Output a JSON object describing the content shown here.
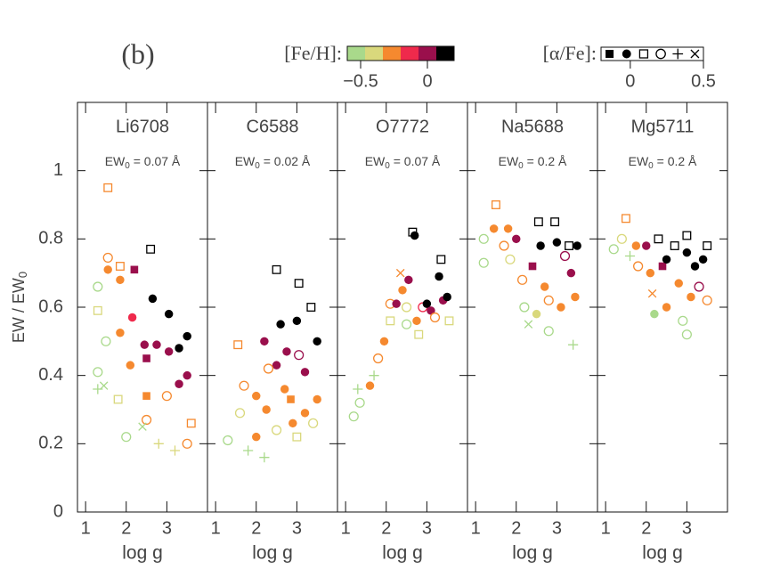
{
  "panel_label": "(b)",
  "feh_legend": {
    "label": "[Fe/H]:",
    "colors": [
      "#a9d98b",
      "#d9d87c",
      "#f5892f",
      "#ef2a4c",
      "#9a0f4c",
      "#000000"
    ],
    "lim": [
      -0.6,
      0.2
    ],
    "ticks": [
      {
        "value": -0.5,
        "label": "−0.5"
      },
      0
    ]
  },
  "alpha_legend": {
    "label": "[α/Fe]:",
    "markers": [
      "square-filled",
      "circle-filled",
      "square-open",
      "circle-open",
      "plus",
      "cross"
    ],
    "lim": [
      -0.2,
      0.5
    ],
    "ticks": [
      0,
      0.5
    ]
  },
  "chart_data": [
    {
      "type": "scatter",
      "title": "Li6708",
      "annotation": {
        "prefix": "EW",
        "sub": "0",
        "text": " = 0.07 Å"
      },
      "xlabel": "log g",
      "ylabel": "EW / EW",
      "ylabel_sub": "0",
      "xlim": [
        0.8,
        4.0
      ],
      "xticks": [
        1,
        2,
        3
      ],
      "ylim": [
        0,
        1.2
      ],
      "yticks": [
        0,
        0.2,
        0.4,
        0.6,
        0.8,
        1
      ],
      "points": [
        [
          1.55,
          0.95,
          -0.2,
          0.1
        ],
        [
          1.3,
          0.66,
          -0.6,
          0.2
        ],
        [
          1.55,
          0.745,
          -0.3,
          0.2
        ],
        [
          1.55,
          0.71,
          -0.3,
          0
        ],
        [
          1.85,
          0.72,
          -0.2,
          0.1
        ],
        [
          1.85,
          0.68,
          -0.2,
          0
        ],
        [
          2.2,
          0.71,
          0,
          -0.1
        ],
        [
          2.15,
          0.57,
          -0.15,
          0
        ],
        [
          1.85,
          0.525,
          -0.3,
          0
        ],
        [
          2.5,
          0.45,
          0,
          -0.1
        ],
        [
          2.45,
          0.49,
          0,
          0
        ],
        [
          2.6,
          0.77,
          0.1,
          0.1
        ],
        [
          2.65,
          0.625,
          0.1,
          0
        ],
        [
          3.05,
          0.58,
          0.1,
          0
        ],
        [
          2.75,
          0.49,
          0,
          0
        ],
        [
          3.05,
          0.47,
          0,
          0
        ],
        [
          3.3,
          0.48,
          0.1,
          0
        ],
        [
          3.5,
          0.515,
          0.1,
          0
        ],
        [
          3.5,
          0.4,
          0,
          0
        ],
        [
          3.3,
          0.375,
          0,
          0
        ],
        [
          2.1,
          0.43,
          -0.3,
          0
        ],
        [
          2.5,
          0.34,
          -0.2,
          -0.1
        ],
        [
          3.0,
          0.34,
          -0.3,
          0.2
        ],
        [
          2.5,
          0.27,
          -0.3,
          0.2
        ],
        [
          1.3,
          0.41,
          -0.6,
          0.2
        ],
        [
          1.3,
          0.36,
          -0.6,
          0.3
        ],
        [
          1.45,
          0.37,
          -0.6,
          0.45
        ],
        [
          1.8,
          0.33,
          -0.45,
          0.1
        ],
        [
          2.0,
          0.22,
          -0.5,
          0.2
        ],
        [
          2.4,
          0.25,
          -0.5,
          0.45
        ],
        [
          2.8,
          0.2,
          -0.4,
          0.3
        ],
        [
          3.2,
          0.18,
          -0.4,
          0.3
        ],
        [
          3.5,
          0.2,
          -0.3,
          0.2
        ],
        [
          3.6,
          0.26,
          -0.3,
          0.1
        ],
        [
          1.5,
          0.5,
          -0.5,
          0.2
        ],
        [
          1.3,
          0.59,
          -0.45,
          0.1
        ]
      ]
    },
    {
      "type": "scatter",
      "title": "C6588",
      "annotation": {
        "prefix": "EW",
        "sub": "0",
        "text": " = 0.02 Å"
      },
      "xlabel": "log g",
      "xlim": [
        0.8,
        4.0
      ],
      "xticks": [
        1,
        2,
        3
      ],
      "ylim": [
        0,
        1.2
      ],
      "yticks": [
        0,
        0.2,
        0.4,
        0.6,
        0.8,
        1
      ],
      "points": [
        [
          1.55,
          0.49,
          -0.2,
          0.1
        ],
        [
          1.3,
          0.21,
          -0.6,
          0.2
        ],
        [
          1.6,
          0.29,
          -0.4,
          0.2
        ],
        [
          1.7,
          0.37,
          -0.3,
          0.2
        ],
        [
          2.0,
          0.34,
          -0.2,
          0
        ],
        [
          2.0,
          0.22,
          -0.3,
          0
        ],
        [
          2.2,
          0.5,
          0,
          0
        ],
        [
          2.25,
          0.3,
          -0.3,
          0
        ],
        [
          2.5,
          0.71,
          0.1,
          0.1
        ],
        [
          2.6,
          0.55,
          0.1,
          0
        ],
        [
          2.5,
          0.43,
          0,
          0
        ],
        [
          2.75,
          0.47,
          0,
          0
        ],
        [
          2.85,
          0.33,
          -0.2,
          -0.1
        ],
        [
          3.0,
          0.56,
          0.1,
          0
        ],
        [
          3.05,
          0.67,
          0.1,
          0.1
        ],
        [
          3.05,
          0.46,
          0,
          0.2
        ],
        [
          3.2,
          0.41,
          0,
          0
        ],
        [
          3.35,
          0.6,
          0.1,
          0.1
        ],
        [
          3.5,
          0.5,
          0.1,
          0
        ],
        [
          3.5,
          0.33,
          -0.2,
          0
        ],
        [
          2.3,
          0.42,
          -0.2,
          0.2
        ],
        [
          2.7,
          0.36,
          -0.2,
          0
        ],
        [
          3.2,
          0.29,
          -0.3,
          0
        ],
        [
          1.8,
          0.18,
          -0.5,
          0.3
        ],
        [
          2.2,
          0.16,
          -0.5,
          0.3
        ],
        [
          2.5,
          0.24,
          -0.4,
          0.2
        ],
        [
          3.0,
          0.22,
          -0.4,
          0.1
        ],
        [
          3.4,
          0.26,
          -0.4,
          0.2
        ],
        [
          2.9,
          0.26,
          -0.3,
          0
        ]
      ]
    },
    {
      "type": "scatter",
      "title": "O7772",
      "annotation": {
        "prefix": "EW",
        "sub": "0",
        "text": " = 0.07 Å"
      },
      "xlabel": "log g",
      "xlim": [
        0.8,
        4.0
      ],
      "xticks": [
        1,
        2,
        3
      ],
      "ylim": [
        0,
        1.2
      ],
      "yticks": [
        0,
        0.2,
        0.4,
        0.6,
        0.8,
        1
      ],
      "points": [
        [
          1.2,
          0.28,
          -0.6,
          0.2
        ],
        [
          1.35,
          0.32,
          -0.6,
          0.2
        ],
        [
          1.3,
          0.36,
          -0.6,
          0.3
        ],
        [
          1.6,
          0.37,
          -0.3,
          0
        ],
        [
          1.7,
          0.4,
          -0.5,
          0.3
        ],
        [
          1.8,
          0.45,
          -0.3,
          0.2
        ],
        [
          1.95,
          0.5,
          -0.2,
          0
        ],
        [
          2.1,
          0.56,
          -0.4,
          0.1
        ],
        [
          2.1,
          0.61,
          -0.2,
          0.2
        ],
        [
          2.25,
          0.61,
          0,
          0
        ],
        [
          2.35,
          0.7,
          -0.3,
          0.45
        ],
        [
          2.4,
          0.65,
          -0.3,
          0
        ],
        [
          2.5,
          0.6,
          -0.4,
          0.2
        ],
        [
          2.55,
          0.68,
          0,
          0
        ],
        [
          2.65,
          0.82,
          0.1,
          0.1
        ],
        [
          2.7,
          0.81,
          0.1,
          0
        ],
        [
          2.75,
          0.56,
          -0.2,
          0
        ],
        [
          2.8,
          0.52,
          -0.4,
          0.1
        ],
        [
          2.9,
          0.6,
          -0.1,
          0.2
        ],
        [
          3.0,
          0.61,
          0.1,
          0
        ],
        [
          3.1,
          0.59,
          0,
          0
        ],
        [
          3.2,
          0.57,
          -0.3,
          0.2
        ],
        [
          3.3,
          0.69,
          0.1,
          0
        ],
        [
          3.35,
          0.74,
          0.1,
          0.1
        ],
        [
          3.4,
          0.62,
          0,
          0
        ],
        [
          3.5,
          0.63,
          0.1,
          0
        ],
        [
          3.55,
          0.56,
          -0.4,
          0.1
        ],
        [
          2.5,
          0.55,
          -0.5,
          0.2
        ]
      ]
    },
    {
      "type": "scatter",
      "title": "Na5688",
      "annotation": {
        "prefix": "EW",
        "sub": "0",
        "text": " = 0.2 Å"
      },
      "xlabel": "log g",
      "xlim": [
        0.8,
        4.0
      ],
      "xticks": [
        1,
        2,
        3
      ],
      "ylim": [
        0,
        1.2
      ],
      "yticks": [
        0,
        0.2,
        0.4,
        0.6,
        0.8,
        1
      ],
      "points": [
        [
          1.2,
          0.8,
          -0.5,
          0.2
        ],
        [
          1.2,
          0.73,
          -0.6,
          0.2
        ],
        [
          1.45,
          0.83,
          -0.3,
          0
        ],
        [
          1.5,
          0.9,
          -0.2,
          0.1
        ],
        [
          1.7,
          0.78,
          -0.2,
          0.2
        ],
        [
          1.8,
          0.83,
          -0.2,
          0
        ],
        [
          1.85,
          0.74,
          -0.4,
          0.2
        ],
        [
          2.0,
          0.8,
          0,
          0
        ],
        [
          2.15,
          0.68,
          -0.2,
          0.2
        ],
        [
          2.2,
          0.6,
          -0.6,
          0.2
        ],
        [
          2.3,
          0.55,
          -0.5,
          0.45
        ],
        [
          2.4,
          0.72,
          0,
          -0.1
        ],
        [
          2.5,
          0.58,
          -0.4,
          0
        ],
        [
          2.55,
          0.85,
          0.1,
          0.1
        ],
        [
          2.6,
          0.78,
          0.1,
          0
        ],
        [
          2.7,
          0.66,
          -0.2,
          0
        ],
        [
          2.8,
          0.62,
          -0.3,
          0.2
        ],
        [
          2.95,
          0.85,
          0.1,
          0.1
        ],
        [
          3.0,
          0.79,
          0.1,
          0
        ],
        [
          3.1,
          0.6,
          -0.3,
          0
        ],
        [
          3.2,
          0.75,
          0,
          0.2
        ],
        [
          3.3,
          0.78,
          0.1,
          0.1
        ],
        [
          3.35,
          0.7,
          0,
          0
        ],
        [
          3.45,
          0.63,
          -0.2,
          0
        ],
        [
          3.5,
          0.78,
          0.1,
          0
        ],
        [
          3.4,
          0.49,
          -0.6,
          0.3
        ],
        [
          2.8,
          0.53,
          -0.6,
          0.2
        ]
      ]
    },
    {
      "type": "scatter",
      "title": "Mg5711",
      "annotation": {
        "prefix": "EW",
        "sub": "0",
        "text": " = 0.2 Å"
      },
      "xlabel": "log g",
      "xlim": [
        0.8,
        4.0
      ],
      "xticks": [
        1,
        2,
        3
      ],
      "ylim": [
        0,
        1.2
      ],
      "yticks": [
        0,
        0.2,
        0.4,
        0.6,
        0.8,
        1
      ],
      "points": [
        [
          1.2,
          0.77,
          -0.6,
          0.2
        ],
        [
          1.4,
          0.8,
          -0.4,
          0.2
        ],
        [
          1.5,
          0.86,
          -0.2,
          0.1
        ],
        [
          1.6,
          0.75,
          -0.5,
          0.3
        ],
        [
          1.75,
          0.78,
          -0.2,
          0
        ],
        [
          1.8,
          0.72,
          -0.3,
          0.2
        ],
        [
          2.0,
          0.78,
          0,
          0
        ],
        [
          2.1,
          0.7,
          -0.2,
          0
        ],
        [
          2.15,
          0.64,
          -0.3,
          0.45
        ],
        [
          2.2,
          0.58,
          -0.5,
          0
        ],
        [
          2.3,
          0.8,
          0.1,
          0.1
        ],
        [
          2.4,
          0.72,
          0,
          -0.1
        ],
        [
          2.5,
          0.74,
          0.1,
          0
        ],
        [
          2.5,
          0.6,
          -0.3,
          0
        ],
        [
          2.7,
          0.78,
          0.1,
          0.1
        ],
        [
          2.8,
          0.67,
          -0.2,
          0
        ],
        [
          2.9,
          0.56,
          -0.5,
          0.2
        ],
        [
          3.0,
          0.76,
          0.1,
          0
        ],
        [
          3.0,
          0.81,
          0.1,
          0.1
        ],
        [
          3.1,
          0.63,
          -0.2,
          0
        ],
        [
          3.2,
          0.72,
          0.1,
          0
        ],
        [
          3.3,
          0.66,
          0,
          0.2
        ],
        [
          3.4,
          0.74,
          0.1,
          0
        ],
        [
          3.5,
          0.78,
          0.1,
          0.1
        ],
        [
          3.5,
          0.62,
          -0.2,
          0.2
        ],
        [
          3.0,
          0.52,
          -0.6,
          0.2
        ]
      ]
    }
  ]
}
